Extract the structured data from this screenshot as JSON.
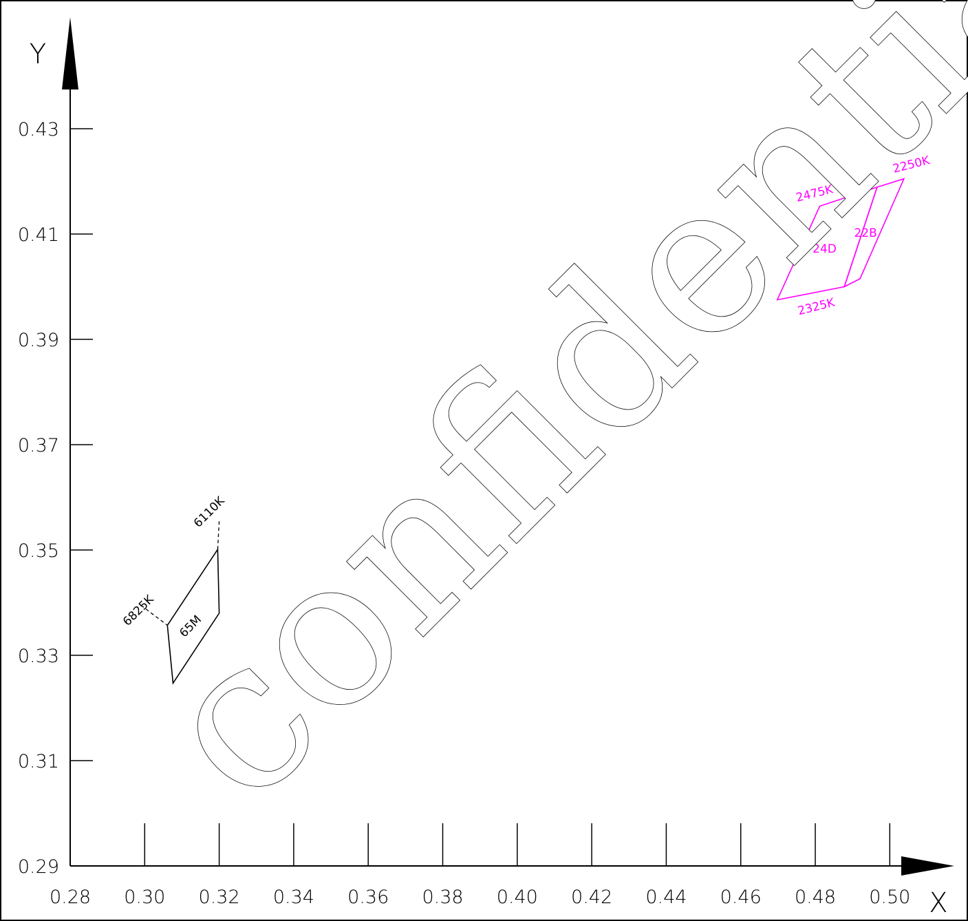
{
  "chart_data": {
    "type": "diagram",
    "xlabel": "X",
    "ylabel": "Y",
    "xlim": [
      0.28,
      0.51
    ],
    "ylim": [
      0.29,
      0.43
    ],
    "x_ticks": [
      "0.28",
      "0.30",
      "0.32",
      "0.34",
      "0.36",
      "0.38",
      "0.40",
      "0.42",
      "0.44",
      "0.46",
      "0.48",
      "0.50"
    ],
    "y_ticks": [
      "0.29",
      "0.31",
      "0.33",
      "0.35",
      "0.37",
      "0.39",
      "0.41",
      "0.43"
    ],
    "regions": [
      {
        "label": "65M",
        "color": "#000000",
        "polygon": [
          [
            0.3061,
            0.3357
          ],
          [
            0.3196,
            0.3501
          ],
          [
            0.32,
            0.338
          ],
          [
            0.3076,
            0.3247
          ]
        ],
        "label_at": [
          0.313,
          0.335
        ],
        "annotations": [
          {
            "text": "6825K",
            "at": [
              0.299,
              0.338
            ],
            "leader": [
              [
                0.299,
                0.3395
              ],
              [
                0.3061,
                0.3357
              ]
            ]
          },
          {
            "text": "6110K",
            "at": [
              0.318,
              0.3567
            ],
            "leader": [
              [
                0.3196,
                0.3501
              ],
              [
                0.32,
                0.3555
              ]
            ]
          }
        ]
      },
      {
        "label": "24D",
        "color": "#ff00ff",
        "polygon": [
          [
            0.4698,
            0.3975
          ],
          [
            0.4812,
            0.4153
          ],
          [
            0.4966,
            0.4189
          ],
          [
            0.4878,
            0.4
          ]
        ],
        "label_at": [
          0.4825,
          0.4065
        ]
      },
      {
        "label": "22B",
        "color": "#ff00ff",
        "polygon": [
          [
            0.4878,
            0.4
          ],
          [
            0.4966,
            0.4189
          ],
          [
            0.5038,
            0.4205
          ],
          [
            0.492,
            0.4015
          ]
        ],
        "label_at": [
          0.4935,
          0.4095
        ]
      }
    ],
    "annotations": [
      {
        "text": "2475K",
        "at": [
          0.48,
          0.417
        ],
        "color": "#ff00ff"
      },
      {
        "text": "2250K",
        "at": [
          0.506,
          0.4225
        ],
        "color": "#ff00ff"
      },
      {
        "text": "2325K",
        "at": [
          0.4805,
          0.3955
        ],
        "color": "#ff00ff"
      }
    ],
    "watermark": "confidential"
  }
}
